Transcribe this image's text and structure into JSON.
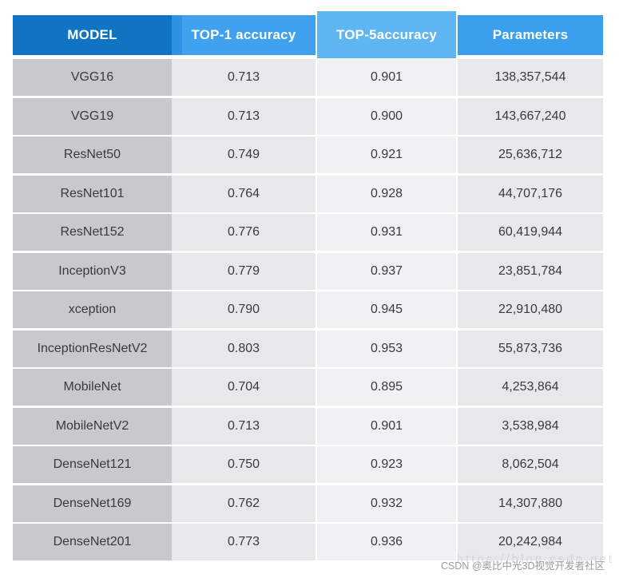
{
  "chart_data": {
    "type": "table",
    "title": "",
    "columns": [
      "MODEL",
      "TOP-1 accuracy",
      "TOP-5accuracy",
      "Parameters"
    ],
    "rows": [
      [
        "VGG16",
        "0.713",
        "0.901",
        "138,357,544"
      ],
      [
        "VGG19",
        "0.713",
        "0.900",
        "143,667,240"
      ],
      [
        "ResNet50",
        "0.749",
        "0.921",
        "25,636,712"
      ],
      [
        "ResNet101",
        "0.764",
        "0.928",
        "44,707,176"
      ],
      [
        "ResNet152",
        "0.776",
        "0.931",
        "60,419,944"
      ],
      [
        "InceptionV3",
        "0.779",
        "0.937",
        "23,851,784"
      ],
      [
        "xception",
        "0.790",
        "0.945",
        "22,910,480"
      ],
      [
        "InceptionResNetV2",
        "0.803",
        "0.953",
        "55,873,736"
      ],
      [
        "MobileNet",
        "0.704",
        "0.895",
        "4,253,864"
      ],
      [
        "MobileNetV2",
        "0.713",
        "0.901",
        "3,538,984"
      ],
      [
        "DenseNet121",
        "0.750",
        "0.923",
        "8,062,504"
      ],
      [
        "DenseNet169",
        "0.762",
        "0.932",
        "14,307,880"
      ],
      [
        "DenseNet201",
        "0.773",
        "0.936",
        "20,242,984"
      ]
    ]
  },
  "watermark": {
    "csdn": "CSDN @奥比中光3D视觉开发者社区",
    "url": "https://blog.csdn.net"
  },
  "colors": {
    "header_model_bg": "#1173c4",
    "header_top1_bg": "#40a2ee",
    "header_top1_left_edge": "#2e92e4",
    "header_top5_bg": "#60b6f3",
    "header_params_bg": "#3aa0ee",
    "header_text": "#ffffff",
    "col_model_bg": "#c9c9cd",
    "col_data_bg": "#e8e8eb",
    "col_top5_bg": "#f1f1f3",
    "body_text": "#3a3a3d",
    "watermark_text": "#9b9b9b",
    "page_bg": "#ffffff"
  }
}
